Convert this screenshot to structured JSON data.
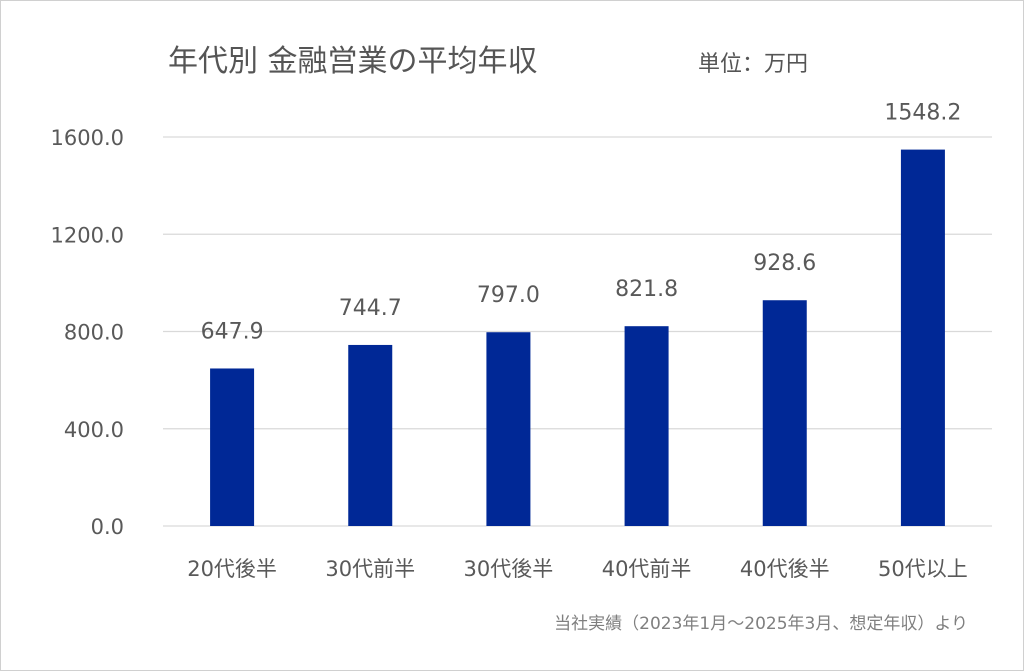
{
  "chart_data": {
    "type": "bar",
    "title": "年代別 金融営業の平均年収",
    "unit_label": "単位：万円",
    "categories": [
      "20代後半",
      "30代前半",
      "30代後半",
      "40代前半",
      "40代後半",
      "50代以上"
    ],
    "values": [
      647.9,
      744.7,
      797.0,
      821.8,
      928.6,
      1548.2
    ],
    "value_labels": [
      "647.9",
      "744.7",
      "797.0",
      "821.8",
      "928.6",
      "1548.2"
    ],
    "y_ticks": [
      0,
      400,
      800,
      1200,
      1600
    ],
    "y_tick_labels": [
      "0.0",
      "400.0",
      "800.0",
      "1200.0",
      "1600.0"
    ],
    "ylim": [
      0,
      1600
    ],
    "grid": true,
    "bar_color": "#002896",
    "source_note": "当社実績（2023年1月～2025年3月、想定年収）より"
  }
}
